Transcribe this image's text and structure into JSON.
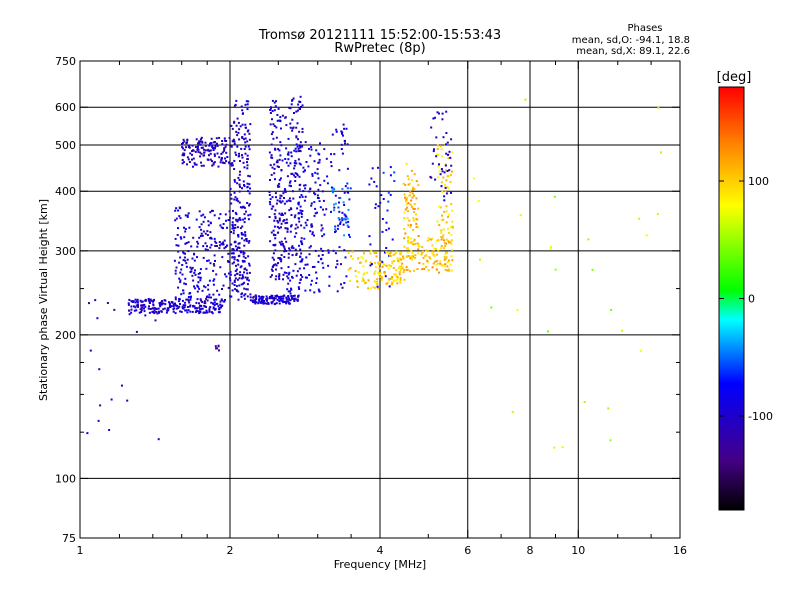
{
  "chart_data": {
    "type": "scatter",
    "title": "Tromsø 20121111 15:52:00-15:53:43",
    "subtitle": "RwPretec (8p)",
    "xlabel": "Frequency [MHz]",
    "ylabel": "Stationary phase Virtual Height [km]",
    "x_scale": "log",
    "y_scale": "log",
    "xlim": [
      1,
      16
    ],
    "ylim": [
      75,
      750
    ],
    "x_ticks": [
      1,
      2,
      4,
      6,
      8,
      10,
      16
    ],
    "x_ticks_labels": [
      "1",
      "2",
      "4",
      "6",
      "8",
      "10",
      "16"
    ],
    "x_minor_ticks": [
      1.2,
      1.4,
      1.6,
      1.8,
      2.5,
      3,
      3.5,
      5,
      7,
      9,
      12,
      14
    ],
    "x_gridlines": [
      2,
      4,
      6,
      8,
      10
    ],
    "y_ticks": [
      75,
      100,
      200,
      300,
      400,
      500,
      600,
      750
    ],
    "y_ticks_labels": [
      "75",
      "100",
      "200",
      "300",
      "400",
      "500",
      "600",
      "750"
    ],
    "y_minor_ticks": [
      125,
      150,
      175,
      250
    ],
    "y_gridlines": [
      100,
      200,
      300,
      400,
      500,
      600
    ],
    "grid": true,
    "legend": {
      "title": "Phases",
      "lines": [
        "mean, sd,O: -94.1, 18.8",
        "mean, sd,X:  89.1, 22.6"
      ],
      "placement": "top-right"
    },
    "colorbar": {
      "label": "[deg]",
      "range": [
        -180,
        180
      ],
      "ticks": [
        -100,
        0,
        100
      ],
      "ticks_labels": [
        "-100",
        "0",
        "100"
      ],
      "colors": [
        "#000000",
        "#440088",
        "#0000ff",
        "#00ffff",
        "#00ff00",
        "#ffff00",
        "#ff8800",
        "#ff0000"
      ]
    },
    "clusters": [
      {
        "x": [
          1.25,
          1.95
        ],
        "y": [
          222,
          238
        ],
        "n": 230,
        "phase": -100
      },
      {
        "x": [
          1.6,
          2.0
        ],
        "y": [
          450,
          520
        ],
        "n": 140,
        "phase": -105
      },
      {
        "x": [
          1.55,
          2.15
        ],
        "y": [
          235,
          370
        ],
        "n": 260,
        "phase": -95
      },
      {
        "x": [
          2.0,
          2.2
        ],
        "y": [
          240,
          630
        ],
        "n": 220,
        "phase": -100
      },
      {
        "x": [
          2.2,
          2.75
        ],
        "y": [
          232,
          242
        ],
        "n": 120,
        "phase": -95
      },
      {
        "x": [
          2.4,
          2.6
        ],
        "y": [
          260,
          620
        ],
        "n": 180,
        "phase": -100
      },
      {
        "x": [
          2.6,
          2.8
        ],
        "y": [
          240,
          640
        ],
        "n": 160,
        "phase": -95
      },
      {
        "x": [
          2.75,
          3.1
        ],
        "y": [
          245,
          510
        ],
        "n": 110,
        "phase": -90
      },
      {
        "x": [
          3.0,
          3.45
        ],
        "y": [
          245,
          560
        ],
        "n": 80,
        "phase": -95
      },
      {
        "x": [
          3.2,
          3.5
        ],
        "y": [
          320,
          420
        ],
        "n": 40,
        "phase": -60
      },
      {
        "x": [
          3.45,
          4.0
        ],
        "y": [
          250,
          300
        ],
        "n": 60,
        "phase": 95
      },
      {
        "x": [
          3.8,
          4.3
        ],
        "y": [
          250,
          450
        ],
        "n": 40,
        "phase": -80
      },
      {
        "x": [
          4.0,
          4.5
        ],
        "y": [
          255,
          300
        ],
        "n": 80,
        "phase": 100
      },
      {
        "x": [
          4.5,
          5.6
        ],
        "y": [
          270,
          320
        ],
        "n": 130,
        "phase": 105
      },
      {
        "x": [
          4.45,
          4.8
        ],
        "y": [
          300,
          460
        ],
        "n": 70,
        "phase": 110
      },
      {
        "x": [
          5.2,
          5.6
        ],
        "y": [
          320,
          500
        ],
        "n": 60,
        "phase": 95
      },
      {
        "x": [
          5.0,
          5.6
        ],
        "y": [
          380,
          600
        ],
        "n": 40,
        "phase": -100
      },
      {
        "x": [
          1.0,
          1.45
        ],
        "y": [
          120,
          240
        ],
        "n": 22,
        "phase": -100
      },
      {
        "x": [
          1.85,
          1.95
        ],
        "y": [
          183,
          190
        ],
        "n": 6,
        "phase": -120
      },
      {
        "x": [
          6.0,
          15.0
        ],
        "y": [
          100,
          660
        ],
        "n": 28,
        "phase": 60
      }
    ]
  }
}
